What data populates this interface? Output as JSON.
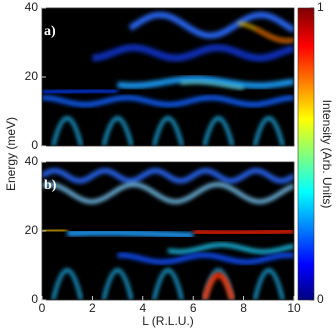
{
  "chart_data": [
    {
      "type": "heatmap",
      "label": "a)",
      "xlim": [
        0,
        10
      ],
      "ylim": [
        0,
        40
      ],
      "yticks": [
        0,
        20,
        40
      ]
    },
    {
      "type": "heatmap",
      "label": "b)",
      "xlim": [
        0,
        10
      ],
      "ylim": [
        0,
        40
      ],
      "yticks": [
        0,
        20,
        40
      ],
      "xticks": [
        0,
        2,
        4,
        6,
        8,
        10
      ],
      "xlabel": "L (R.L.U.)"
    }
  ],
  "ylabel": "Energy (meV)",
  "colorbar": {
    "label": "Intensity (Arb. Units)",
    "lim": [
      0,
      1
    ],
    "ticks": [
      0,
      1
    ]
  }
}
